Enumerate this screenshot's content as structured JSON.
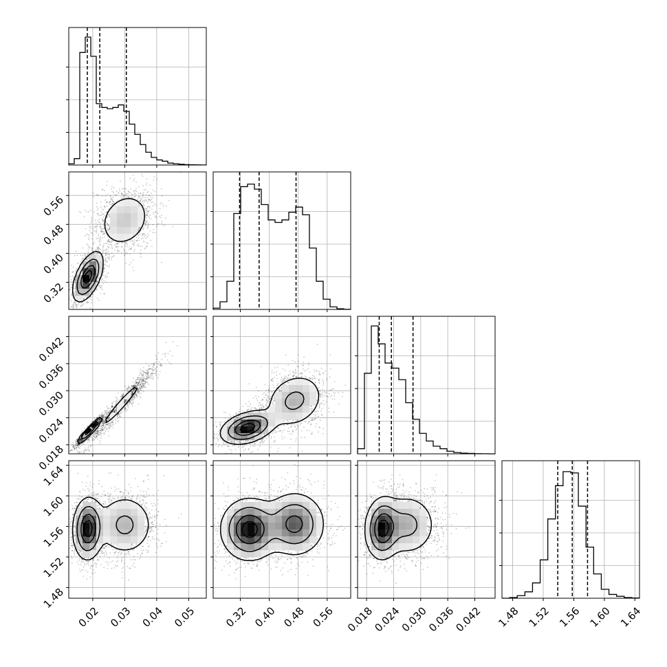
{
  "chart_data": {
    "type": "corner",
    "grid": true,
    "n_params": 4,
    "params": [
      {
        "index": 0,
        "range": [
          0.0125,
          0.0555
        ],
        "ticks": [
          "0.02",
          "0.03",
          "0.04",
          "0.05"
        ],
        "tick_values": [
          0.02,
          0.03,
          0.04,
          0.05
        ],
        "quantiles": [
          0.0183,
          0.0222,
          0.0305
        ],
        "hist": [
          0.01,
          0.05,
          0.88,
          1.0,
          0.85,
          0.48,
          0.45,
          0.44,
          0.45,
          0.47,
          0.42,
          0.32,
          0.24,
          0.16,
          0.1,
          0.06,
          0.04,
          0.03,
          0.015,
          0.01,
          0.006,
          0.003,
          0.002,
          0.001,
          0.0005
        ]
      },
      {
        "index": 1,
        "range": [
          0.245,
          0.625
        ],
        "ticks": [
          "0.32",
          "0.40",
          "0.48",
          "0.56"
        ],
        "tick_values": [
          0.32,
          0.4,
          0.48,
          0.56
        ],
        "quantiles": [
          0.318,
          0.372,
          0.474
        ],
        "hist": [
          0.01,
          0.06,
          0.22,
          0.75,
          0.96,
          0.98,
          0.94,
          0.82,
          0.7,
          0.68,
          0.7,
          0.76,
          0.8,
          0.74,
          0.48,
          0.22,
          0.08,
          0.02,
          0.005,
          0.001
        ]
      },
      {
        "index": 2,
        "range": [
          0.016,
          0.0465
        ],
        "ticks": [
          "0.018",
          "0.024",
          "0.030",
          "0.036",
          "0.042"
        ],
        "tick_values": [
          0.018,
          0.024,
          0.03,
          0.036,
          0.042
        ],
        "quantiles": [
          0.0208,
          0.0235,
          0.0283
        ],
        "hist": [
          0.04,
          0.63,
          1.0,
          0.86,
          0.71,
          0.67,
          0.58,
          0.4,
          0.27,
          0.16,
          0.1,
          0.06,
          0.04,
          0.02,
          0.01,
          0.005,
          0.003,
          0.001,
          0.0005,
          0.0002
        ]
      },
      {
        "index": 3,
        "range": [
          1.466,
          1.646
        ],
        "ticks": [
          "1.48",
          "1.52",
          "1.56",
          "1.60",
          "1.64"
        ],
        "tick_values": [
          1.48,
          1.52,
          1.56,
          1.6,
          1.64
        ],
        "quantiles": [
          1.539,
          1.558,
          1.578
        ],
        "hist": [
          0.0,
          0.005,
          0.02,
          0.05,
          0.12,
          0.3,
          0.62,
          0.88,
          0.99,
          0.98,
          0.72,
          0.4,
          0.19,
          0.07,
          0.03,
          0.015,
          0.005,
          0.002
        ]
      }
    ],
    "pairs": [
      {
        "x": 0,
        "y": 1,
        "modes": [
          {
            "mx": 0.0185,
            "my": 0.335,
            "sx": 0.0022,
            "sy": 0.032,
            "rho": 0.55,
            "w": 0.55
          },
          {
            "mx": 0.03,
            "my": 0.492,
            "sx": 0.0042,
            "sy": 0.04,
            "rho": 0.2,
            "w": 0.45
          }
        ]
      },
      {
        "x": 0,
        "y": 2,
        "modes": [
          {
            "mx": 0.019,
            "my": 0.0212,
            "sx": 0.0018,
            "sy": 0.0014,
            "rho": 0.95,
            "w": 0.5
          },
          {
            "mx": 0.029,
            "my": 0.027,
            "sx": 0.005,
            "sy": 0.004,
            "rho": 0.97,
            "w": 0.5
          }
        ]
      },
      {
        "x": 0,
        "y": 3,
        "modes": [
          {
            "mx": 0.0185,
            "my": 1.557,
            "sx": 0.0022,
            "sy": 0.019,
            "rho": 0.05,
            "w": 0.55
          },
          {
            "mx": 0.03,
            "my": 1.562,
            "sx": 0.0045,
            "sy": 0.02,
            "rho": 0.0,
            "w": 0.45
          }
        ]
      },
      {
        "x": 1,
        "y": 2,
        "modes": [
          {
            "mx": 0.34,
            "my": 0.0218,
            "sx": 0.035,
            "sy": 0.0017,
            "rho": 0.35,
            "w": 0.55
          },
          {
            "mx": 0.47,
            "my": 0.0278,
            "sx": 0.04,
            "sy": 0.003,
            "rho": 0.2,
            "w": 0.45
          }
        ]
      },
      {
        "x": 1,
        "y": 3,
        "modes": [
          {
            "mx": 0.345,
            "my": 1.556,
            "sx": 0.037,
            "sy": 0.019,
            "rho": 0.0,
            "w": 0.55
          },
          {
            "mx": 0.47,
            "my": 1.563,
            "sx": 0.04,
            "sy": 0.02,
            "rho": 0.0,
            "w": 0.45
          }
        ]
      },
      {
        "x": 2,
        "y": 3,
        "modes": [
          {
            "mx": 0.0215,
            "my": 1.557,
            "sx": 0.0018,
            "sy": 0.019,
            "rho": 0.05,
            "w": 0.55
          },
          {
            "mx": 0.027,
            "my": 1.562,
            "sx": 0.0032,
            "sy": 0.02,
            "rho": 0.0,
            "w": 0.45
          }
        ]
      }
    ]
  }
}
